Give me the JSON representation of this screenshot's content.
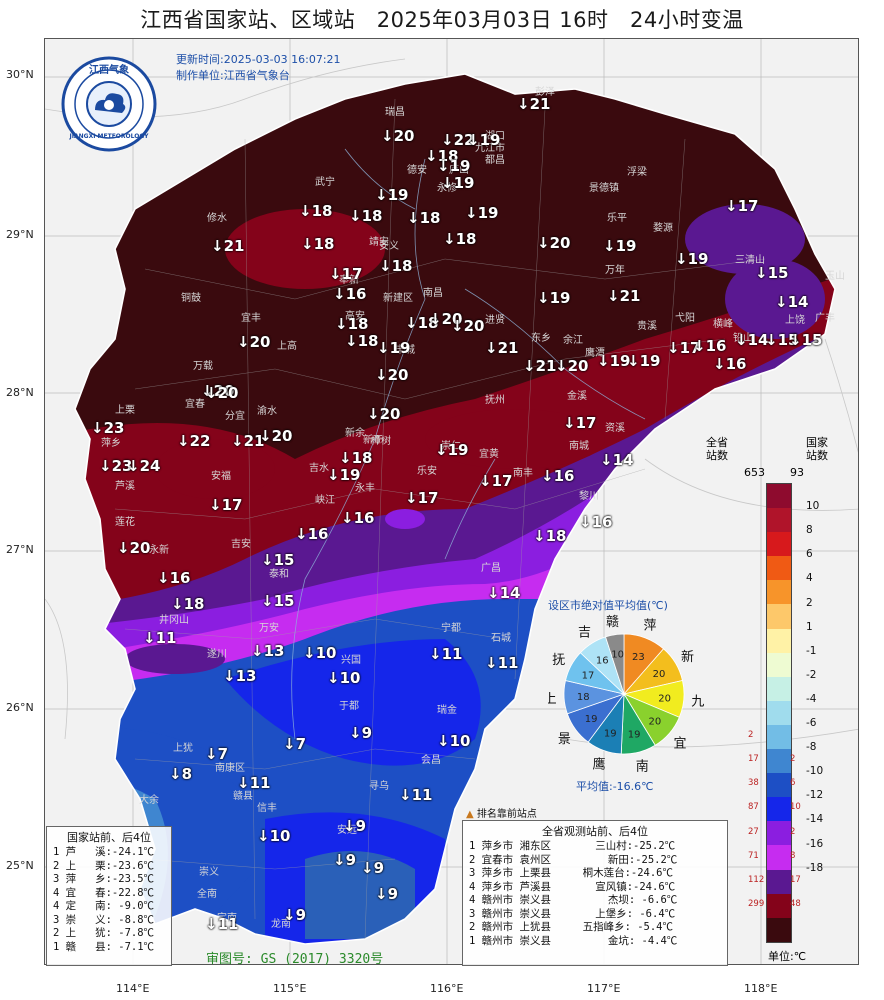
{
  "title": "江西省国家站、区域站   2025年03月03日 16时   24小时变温",
  "update_time": "更新时间:2025-03-03 16:07:21",
  "producer": "制作单位:江西省气象台",
  "logo": {
    "top_text": "江西气象",
    "bottom_text": "JIANGXI METEOROLOGY"
  },
  "lat_labels": [
    "30°N",
    "29°N",
    "28°N",
    "27°N",
    "26°N",
    "25°N"
  ],
  "lon_labels": [
    "114°E",
    "115°E",
    "116°E",
    "117°E",
    "118°E"
  ],
  "stations": [
    {
      "v": "↓21"
    },
    {
      "v": "↓20"
    },
    {
      "v": "↓22"
    },
    {
      "v": "↓19"
    },
    {
      "v": "↓18"
    },
    {
      "v": "↓19"
    },
    {
      "v": "↓19"
    },
    {
      "v": "↓19"
    },
    {
      "v": "↓18"
    },
    {
      "v": "↓19"
    },
    {
      "v": "↓18"
    },
    {
      "v": "↓18"
    },
    {
      "v": "↓17"
    },
    {
      "v": "↓18"
    },
    {
      "v": "↓21"
    },
    {
      "v": "↓18"
    },
    {
      "v": "↓20"
    },
    {
      "v": "↓19"
    },
    {
      "v": "↓19"
    },
    {
      "v": "↓17"
    },
    {
      "v": "↓18"
    },
    {
      "v": "↓16"
    },
    {
      "v": "↓21"
    },
    {
      "v": "↓15"
    },
    {
      "v": "↓19"
    },
    {
      "v": "↓19"
    },
    {
      "v": "↓14"
    },
    {
      "v": "↓18"
    },
    {
      "v": "↓18"
    },
    {
      "v": "↓20"
    },
    {
      "v": "↓20"
    },
    {
      "v": "↓18"
    },
    {
      "v": "↓20"
    },
    {
      "v": "↓21"
    },
    {
      "v": "↓21"
    },
    {
      "v": "↓20"
    },
    {
      "v": "↓19"
    },
    {
      "v": "↓19"
    },
    {
      "v": "↓17"
    },
    {
      "v": "↓16"
    },
    {
      "v": "↓14"
    },
    {
      "v": "↓15"
    },
    {
      "v": "↓15"
    },
    {
      "v": "↓16"
    },
    {
      "v": "↓20"
    },
    {
      "v": "↓20"
    },
    {
      "v": "↓20"
    },
    {
      "v": "↓17"
    },
    {
      "v": "↓23"
    },
    {
      "v": "↓22"
    },
    {
      "v": "↓21"
    },
    {
      "v": "↓20"
    },
    {
      "v": "↓20"
    },
    {
      "v": "↓18"
    },
    {
      "v": "↓19"
    },
    {
      "v": "↓16"
    },
    {
      "v": "↓14"
    },
    {
      "v": "↓23"
    },
    {
      "v": "↓24"
    },
    {
      "v": "↓17"
    },
    {
      "v": "↓19"
    },
    {
      "v": "↓17"
    },
    {
      "v": "↓17"
    },
    {
      "v": "↓16"
    },
    {
      "v": "↓16"
    },
    {
      "v": "↓18"
    },
    {
      "v": "↓20"
    },
    {
      "v": "↓16"
    },
    {
      "v": "↓15"
    },
    {
      "v": "↓14"
    },
    {
      "v": "↓16"
    },
    {
      "v": "↓15"
    },
    {
      "v": "↓18"
    },
    {
      "v": "↓11"
    },
    {
      "v": "↓13"
    },
    {
      "v": "↓13"
    },
    {
      "v": "↓10"
    },
    {
      "v": "↓11"
    },
    {
      "v": "↓10"
    },
    {
      "v": "↓7"
    },
    {
      "v": "↓7"
    },
    {
      "v": "↓9"
    },
    {
      "v": "↓10"
    },
    {
      "v": "↓8"
    },
    {
      "v": "↓11"
    },
    {
      "v": "↓11"
    },
    {
      "v": "↓9"
    },
    {
      "v": "↓10"
    },
    {
      "v": "↓9"
    },
    {
      "v": "↓11"
    },
    {
      "v": "↓9"
    },
    {
      "v": "↓9"
    },
    {
      "v": "↓11"
    },
    {
      "v": "↓9"
    }
  ],
  "national_stations": {
    "title": "国家站前、后4位",
    "rows": [
      "1 芦   溪:-24.1℃",
      "2 上   栗:-23.6℃",
      "3 萍   乡:-23.5℃",
      "4 宜   春:-22.8℃",
      "4 定   南: -9.0℃",
      "3 崇   义: -8.8℃",
      "2 上   犹: -7.8℃",
      "1 赣   县: -7.1℃"
    ]
  },
  "all_stations": {
    "title": "全省观测站前、后4位",
    "rows": [
      "1 萍乡市 湘东区       三山村:-25.2℃",
      "2 宜春市 袁州区         新田:-25.2℃",
      "3 萍乡市 上栗县     桐木莲台:-24.6℃",
      "4 萍乡市 芦溪县       宣风镇:-24.6℃",
      "4 赣州市 崇义县         杰坝: -6.6℃",
      "3 赣州市 崇义县       上堡乡: -6.4℃",
      "2 赣州市 上犹县     五指峰乡: -5.4℃",
      "1 赣州市 崇义县         金坑: -4.4℃"
    ]
  },
  "ranking_marker_label": "排名靠前站点",
  "pie": {
    "title": "设区市绝对值平均值(℃)",
    "average_label": "平均值:-16.6℃",
    "slices": [
      {
        "city": "萍",
        "value": 23,
        "color": "#f08a22"
      },
      {
        "city": "新",
        "value": 20,
        "color": "#f3be1d"
      },
      {
        "city": "九",
        "value": 20,
        "color": "#f1ec1f"
      },
      {
        "city": "宜",
        "value": 20,
        "color": "#8ad12d"
      },
      {
        "city": "南",
        "value": 19,
        "color": "#1fa864"
      },
      {
        "city": "鹰",
        "value": 19,
        "color": "#1b7fb5"
      },
      {
        "city": "景",
        "value": 19,
        "color": "#3b6fd0"
      },
      {
        "city": "上",
        "value": 18,
        "color": "#5b93e0"
      },
      {
        "city": "抚",
        "value": 17,
        "color": "#6fc2ee"
      },
      {
        "city": "吉",
        "value": 16,
        "color": "#aee3f6"
      },
      {
        "city": "赣",
        "value": 10,
        "color": "#8a8a8a"
      }
    ]
  },
  "colorbar": {
    "header_left": "全省\n站数",
    "header_left_total": "653",
    "header_right": "国家\n站数",
    "header_right_total": "93",
    "unit": "单位:℃",
    "colors": [
      "#8e0b2e",
      "#b0142a",
      "#d7191c",
      "#f05a14",
      "#f7942a",
      "#fdc86a",
      "#fff2a6",
      "#eefbd2",
      "#c6f0e5",
      "#a0dced",
      "#72bde6",
      "#3f86d0",
      "#1d4fc5",
      "#1526ea",
      "#8b1ee0",
      "#c62cf0",
      "#5a1891",
      "#84031a",
      "#3a0a0e"
    ],
    "ticks": [
      "10",
      "8",
      "6",
      "4",
      "2",
      "1",
      "-1",
      "-2",
      "-4",
      "-6",
      "-8",
      "-10",
      "-12",
      "-14",
      "-16",
      "-18"
    ],
    "left_counts": [
      "2",
      "17",
      "38",
      "87",
      "27",
      "71",
      "112",
      "299"
    ],
    "right_counts": [
      "2",
      "6",
      "10",
      "2",
      "8",
      "17",
      "48"
    ]
  },
  "review_number": "审图号: GS (2017) 3320号",
  "city_names": [
    "彭泽",
    "瑞昌",
    "九江市",
    "庐山",
    "湖口",
    "都昌",
    "德安",
    "浮梁",
    "景德镇",
    "武宁",
    "修水",
    "永修",
    "安义",
    "乐平",
    "万年",
    "婺源",
    "靖安",
    "奉新",
    "新建区",
    "南昌",
    "铜鼓",
    "宜丰",
    "上高",
    "高安",
    "丰城",
    "进贤",
    "东乡",
    "余江",
    "鹰潭",
    "贵溪",
    "弋阳",
    "横峰",
    "铅山",
    "上饶",
    "广丰",
    "玉山",
    "三清山",
    "万载",
    "宜春",
    "分宜",
    "渝水",
    "新余",
    "樟树",
    "抚州",
    "崇仁",
    "宜黄",
    "金溪",
    "资溪",
    "南城",
    "南丰",
    "黎川",
    "广昌",
    "上栗",
    "萍乡",
    "芦溪",
    "莲花",
    "安福",
    "吉安",
    "吉水",
    "峡江",
    "新干",
    "永丰",
    "乐安",
    "永新",
    "井冈山",
    "泰和",
    "遂川",
    "万安",
    "兴国",
    "宁都",
    "石城",
    "瑞金",
    "于都",
    "会昌",
    "安远",
    "寻乌",
    "定南",
    "龙南",
    "全南",
    "信丰",
    "南康区",
    "上犹",
    "崇义",
    "大余",
    "赣县"
  ]
}
